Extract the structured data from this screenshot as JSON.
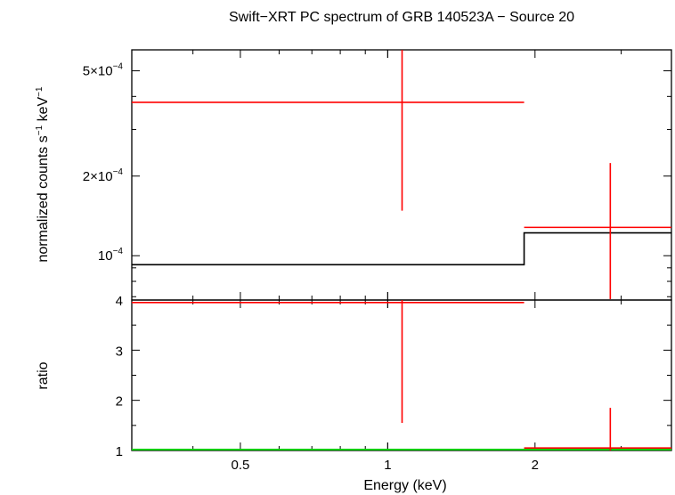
{
  "chart_data": [
    {
      "type": "scatter",
      "panel": "spectrum",
      "title": "Swift−XRT PC spectrum of GRB 140523A − Source 20",
      "ylabel": {
        "main": "normalized counts s",
        "exp1": "−1",
        "mid": " keV",
        "exp2": "−1"
      },
      "xscale": "log",
      "yscale": "log",
      "xlim": [
        0.3,
        3.8
      ],
      "ylim": [
        6.8e-05,
        0.0006
      ],
      "yticks": [
        {
          "value": 0.0001,
          "base": "10",
          "exp": "−4"
        },
        {
          "value": 0.0002,
          "base": "2×10",
          "exp": "−4"
        },
        {
          "value": 0.0005,
          "base": "5×10",
          "exp": "−4"
        }
      ],
      "data": [
        {
          "x": 1.07,
          "xlo": 0.3,
          "xhi": 1.9,
          "y": 0.00038,
          "ylo": 0.000148,
          "yhi": 0.00061
        },
        {
          "x": 2.85,
          "xlo": 1.9,
          "xhi": 3.8,
          "y": 0.000128,
          "ylo": 6.85e-05,
          "yhi": 0.000224
        }
      ],
      "model": [
        {
          "xlo": 0.3,
          "xhi": 1.9,
          "y": 9.25e-05
        },
        {
          "xlo": 1.9,
          "xhi": 3.8,
          "y": 0.000122
        }
      ],
      "colors": {
        "data": "#ff0000",
        "model": "#000000",
        "axes": "#000000"
      }
    },
    {
      "type": "scatter",
      "panel": "ratio",
      "xlabel": "Energy (keV)",
      "ylabel": "ratio",
      "xscale": "log",
      "xlim": [
        0.3,
        3.8
      ],
      "ylim": [
        1.0,
        4.0
      ],
      "xticks": [
        {
          "value": 0.5,
          "label": "0.5"
        },
        {
          "value": 1,
          "label": "1"
        },
        {
          "value": 2,
          "label": "2"
        }
      ],
      "yticks": [
        {
          "value": 1,
          "label": "1"
        },
        {
          "value": 2,
          "label": "2"
        },
        {
          "value": 3,
          "label": "3"
        },
        {
          "value": 4,
          "label": "4"
        }
      ],
      "data": [
        {
          "x": 1.07,
          "xlo": 0.3,
          "xhi": 1.9,
          "y": 3.95,
          "ylo": 1.55,
          "yhi": 4.0
        },
        {
          "x": 2.85,
          "xlo": 1.9,
          "xhi": 3.8,
          "y": 1.05,
          "ylo": 1.0,
          "yhi": 1.85
        }
      ],
      "reference_line": {
        "y": 1.0,
        "color": "#00cc00"
      },
      "colors": {
        "data": "#ff0000",
        "axes": "#000000"
      }
    }
  ]
}
